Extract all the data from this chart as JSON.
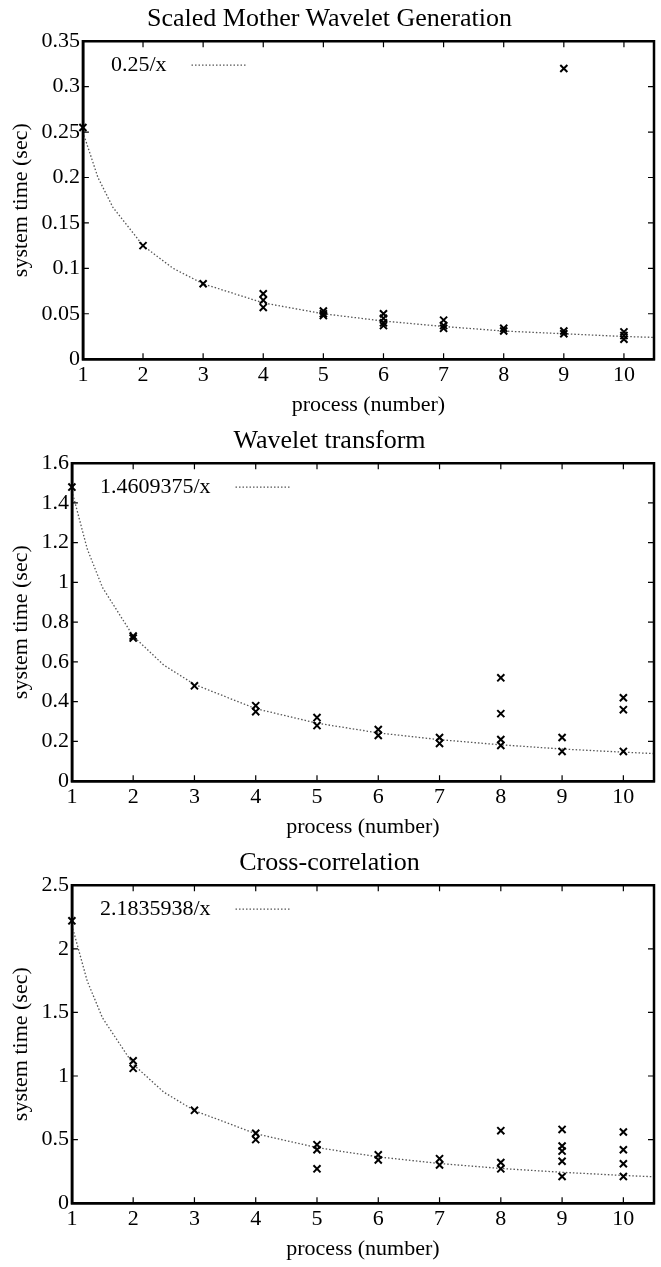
{
  "chart_data": [
    {
      "type": "scatter",
      "title": "Scaled Mother Wavelet Generation",
      "xlabel": "process (number)",
      "ylabel": "system time (sec)",
      "xlim": [
        1,
        10.5
      ],
      "xticks": [
        1,
        2,
        3,
        4,
        5,
        6,
        7,
        8,
        9,
        10
      ],
      "ylim": [
        0,
        0.35
      ],
      "yticks": [
        0,
        0.05,
        0.1,
        0.15,
        0.2,
        0.25,
        0.3,
        0.35
      ],
      "grid": false,
      "legend": "top left",
      "series": [
        {
          "type": "scatter",
          "color": "#000000",
          "marker": "cross",
          "x": [
            1,
            2,
            3,
            4,
            4,
            4,
            5,
            5,
            5,
            6,
            6,
            6,
            6,
            7,
            7,
            7,
            8,
            8,
            9,
            9,
            9,
            10,
            10,
            10
          ],
          "values": [
            0.255,
            0.125,
            0.083,
            0.072,
            0.065,
            0.057,
            0.053,
            0.05,
            0.048,
            0.05,
            0.045,
            0.04,
            0.037,
            0.043,
            0.037,
            0.034,
            0.034,
            0.031,
            0.32,
            0.031,
            0.028,
            0.03,
            0.026,
            0.022
          ]
        },
        {
          "type": "line",
          "name": "0.25/x",
          "color": "#555555",
          "marker": "none",
          "line_style": "dotted",
          "x": [
            1,
            1.25,
            1.5,
            2,
            2.5,
            3,
            4,
            5,
            6,
            7,
            8,
            9,
            10,
            10.5
          ],
          "values": [
            0.25,
            0.2,
            0.167,
            0.125,
            0.1,
            0.083,
            0.062,
            0.05,
            0.042,
            0.036,
            0.031,
            0.028,
            0.025,
            0.024
          ]
        }
      ]
    },
    {
      "type": "scatter",
      "title": "Wavelet transform",
      "xlabel": "process (number)",
      "ylabel": "system time (sec)",
      "xlim": [
        1,
        10.5
      ],
      "xticks": [
        1,
        2,
        3,
        4,
        5,
        6,
        7,
        8,
        9,
        10
      ],
      "ylim": [
        0,
        1.6
      ],
      "yticks": [
        0,
        0.2,
        0.4,
        0.6,
        0.8,
        1,
        1.2,
        1.4,
        1.6
      ],
      "grid": false,
      "legend": "top left",
      "series": [
        {
          "type": "scatter",
          "color": "#000000",
          "marker": "cross",
          "x": [
            1,
            2,
            2,
            3,
            4,
            4,
            5,
            5,
            6,
            6,
            7,
            7,
            8,
            8,
            8,
            8,
            9,
            9,
            10,
            10,
            10
          ],
          "values": [
            1.48,
            0.73,
            0.72,
            0.48,
            0.38,
            0.35,
            0.32,
            0.28,
            0.26,
            0.23,
            0.22,
            0.19,
            0.52,
            0.34,
            0.21,
            0.18,
            0.22,
            0.15,
            0.42,
            0.36,
            0.15
          ]
        },
        {
          "type": "line",
          "name": "1.4609375/x",
          "color": "#555555",
          "marker": "none",
          "line_style": "dotted",
          "x": [
            1,
            1.25,
            1.5,
            2,
            2.5,
            3,
            4,
            5,
            6,
            7,
            8,
            9,
            10,
            10.5
          ],
          "values": [
            1.461,
            1.169,
            0.974,
            0.73,
            0.584,
            0.487,
            0.365,
            0.292,
            0.243,
            0.209,
            0.183,
            0.162,
            0.146,
            0.139
          ]
        }
      ]
    },
    {
      "type": "scatter",
      "title": "Cross-correlation",
      "xlabel": "process (number)",
      "ylabel": "system time (sec)",
      "xlim": [
        1,
        10.5
      ],
      "xticks": [
        1,
        2,
        3,
        4,
        5,
        6,
        7,
        8,
        9,
        10
      ],
      "ylim": [
        0,
        2.5
      ],
      "yticks": [
        0,
        0.5,
        1,
        1.5,
        2,
        2.5
      ],
      "grid": false,
      "legend": "top left",
      "series": [
        {
          "type": "scatter",
          "color": "#000000",
          "marker": "cross",
          "x": [
            1,
            2,
            2,
            3,
            4,
            4,
            5,
            5,
            5,
            6,
            6,
            7,
            7,
            8,
            8,
            8,
            9,
            9,
            9,
            9,
            9,
            10,
            10,
            10,
            10
          ],
          "values": [
            2.22,
            1.12,
            1.06,
            0.73,
            0.55,
            0.5,
            0.46,
            0.42,
            0.27,
            0.38,
            0.34,
            0.35,
            0.3,
            0.57,
            0.32,
            0.27,
            0.58,
            0.45,
            0.41,
            0.33,
            0.21,
            0.56,
            0.42,
            0.31,
            0.21
          ]
        },
        {
          "type": "line",
          "name": "2.1835938/x",
          "color": "#555555",
          "marker": "none",
          "line_style": "dotted",
          "x": [
            1,
            1.25,
            1.5,
            2,
            2.5,
            3,
            4,
            5,
            6,
            7,
            8,
            9,
            10,
            10.5
          ],
          "values": [
            2.184,
            1.747,
            1.456,
            1.092,
            0.873,
            0.728,
            0.546,
            0.437,
            0.364,
            0.312,
            0.273,
            0.243,
            0.218,
            0.208
          ]
        }
      ]
    }
  ]
}
